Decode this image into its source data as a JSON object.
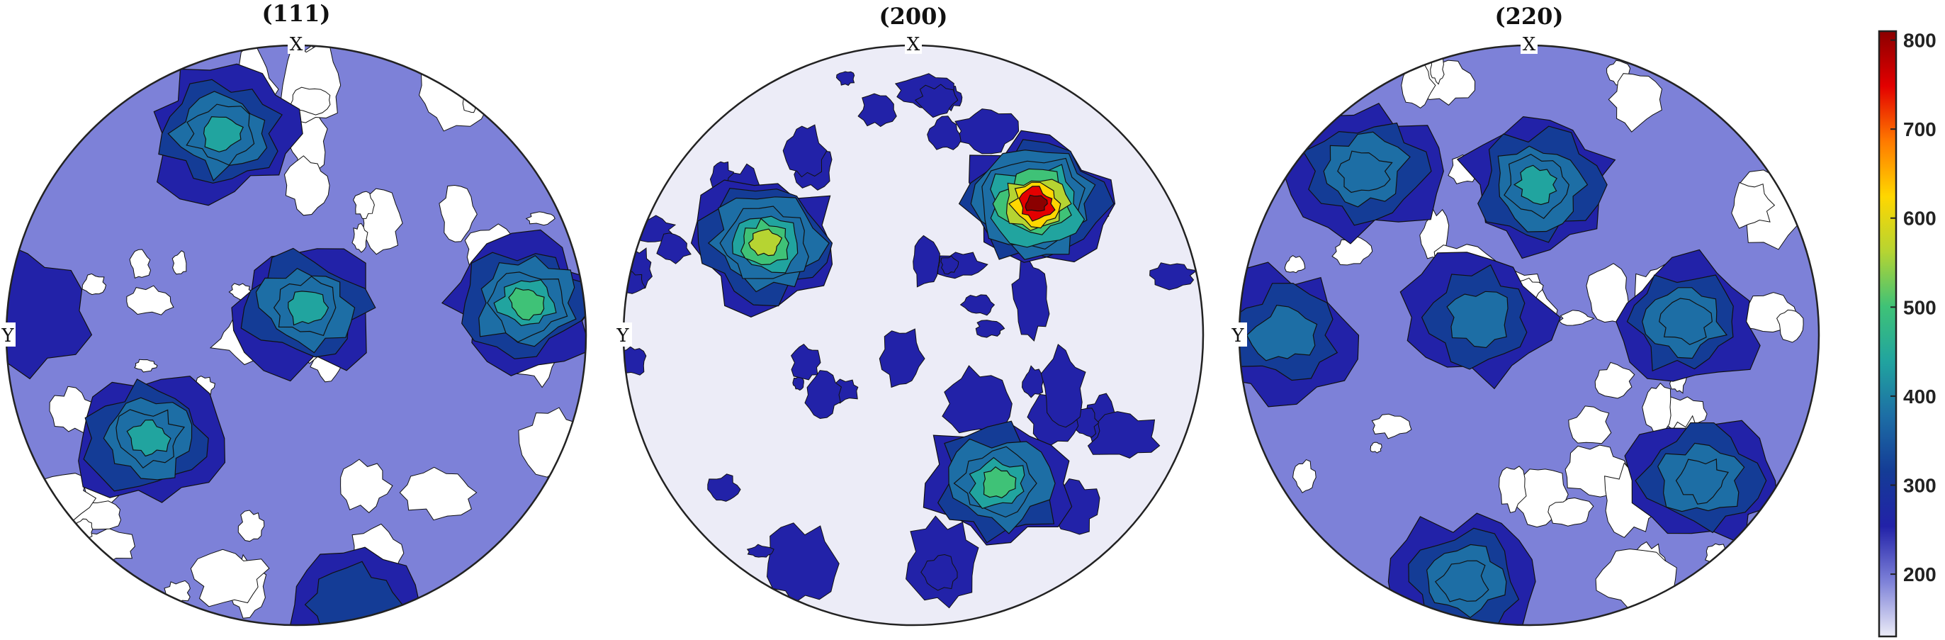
{
  "chart_data": [
    {
      "type": "contour",
      "title": "(111)",
      "x_label": "X",
      "y_label": "Y",
      "hotspots": [
        {
          "theta": 110,
          "r": 0.74,
          "peak": 480
        },
        {
          "theta": 72,
          "r": 0.1,
          "peak": 450
        },
        {
          "theta": 8,
          "r": 0.8,
          "peak": 520
        },
        {
          "theta": 215,
          "r": 0.62,
          "peak": 470
        },
        {
          "theta": 282,
          "r": 0.95,
          "peak": 300
        },
        {
          "theta": 175,
          "r": 0.97,
          "peak": 270
        }
      ]
    },
    {
      "type": "contour",
      "title": "(200)",
      "x_label": "X",
      "y_label": "Y",
      "hotspots": [
        {
          "theta": 47,
          "r": 0.62,
          "peak": 800
        },
        {
          "theta": 148,
          "r": 0.6,
          "peak": 580
        },
        {
          "theta": 300,
          "r": 0.59,
          "peak": 560
        }
      ]
    },
    {
      "type": "contour",
      "title": "(220)",
      "x_label": "X",
      "y_label": "Y",
      "hotspots": [
        {
          "theta": 135,
          "r": 0.8,
          "peak": 420
        },
        {
          "theta": 87,
          "r": 0.52,
          "peak": 470
        },
        {
          "theta": 180,
          "r": 0.85,
          "peak": 390
        },
        {
          "theta": 160,
          "r": 0.18,
          "peak": 380
        },
        {
          "theta": 5,
          "r": 0.54,
          "peak": 420
        },
        {
          "theta": 255,
          "r": 0.88,
          "peak": 410
        },
        {
          "theta": 320,
          "r": 0.78,
          "peak": 420
        }
      ]
    }
  ],
  "colorbar": {
    "min": 130,
    "max": 810,
    "ticks": [
      "200",
      "300",
      "400",
      "500",
      "600",
      "700",
      "800"
    ],
    "tick_values": [
      200,
      300,
      400,
      500,
      600,
      700,
      800
    ],
    "colormap": [
      "#ececf7",
      "#7d81d8",
      "#2222a8",
      "#143c96",
      "#1d6ea5",
      "#21a49f",
      "#3fc277",
      "#b6d432",
      "#ffd700",
      "#ff7a00",
      "#e30000",
      "#8b0000"
    ]
  },
  "levels": [
    130,
    190,
    250,
    300,
    350,
    400,
    450,
    500,
    570,
    650,
    730,
    790
  ]
}
